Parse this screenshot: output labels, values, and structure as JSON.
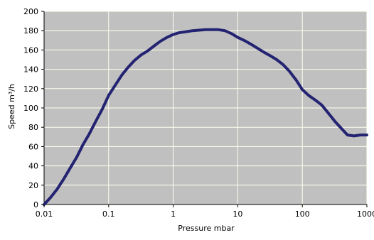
{
  "chart_data": {
    "type": "line",
    "title": "",
    "xlabel": "Pressure mbar",
    "ylabel": "Speed m³/h",
    "xscale": "log",
    "xlim": [
      0.01,
      1000
    ],
    "ylim": [
      0,
      200
    ],
    "xticks": [
      0.01,
      0.1,
      1,
      10,
      100,
      1000
    ],
    "xtick_labels": [
      "0.01",
      "0.1",
      "1",
      "10",
      "100",
      "1000"
    ],
    "yticks": [
      0,
      20,
      40,
      60,
      80,
      100,
      120,
      140,
      160,
      180,
      200
    ],
    "ytick_labels": [
      "0",
      "20",
      "40",
      "60",
      "80",
      "100",
      "120",
      "140",
      "160",
      "180",
      "200"
    ],
    "grid": true,
    "legend": "none",
    "colors": {
      "plot_background": "#c0c0c0",
      "gridline": "#fffff0",
      "line": "#232372"
    },
    "series": [
      {
        "x": [
          0.01,
          0.0125,
          0.016,
          0.02,
          0.025,
          0.032,
          0.04,
          0.05,
          0.063,
          0.08,
          0.1,
          0.125,
          0.16,
          0.2,
          0.25,
          0.32,
          0.4,
          0.5,
          0.63,
          0.8,
          1,
          1.25,
          1.6,
          2,
          2.5,
          3.2,
          4,
          5,
          6.3,
          8,
          10,
          12.5,
          16,
          20,
          25,
          32,
          40,
          50,
          63,
          80,
          100,
          125,
          160,
          200,
          250,
          320,
          400,
          500,
          630,
          800,
          1000
        ],
        "y": [
          0,
          7,
          16,
          26,
          37,
          49,
          62,
          73,
          86,
          99,
          113,
          123,
          134,
          142,
          149,
          155,
          159,
          164,
          169,
          173,
          176,
          178,
          179,
          180,
          180.5,
          181,
          181,
          181,
          180,
          177,
          173,
          170,
          166,
          162,
          158,
          154,
          150,
          145,
          138,
          129,
          119,
          113,
          108,
          103,
          95,
          86,
          79,
          72,
          71,
          72,
          72
        ]
      }
    ]
  }
}
